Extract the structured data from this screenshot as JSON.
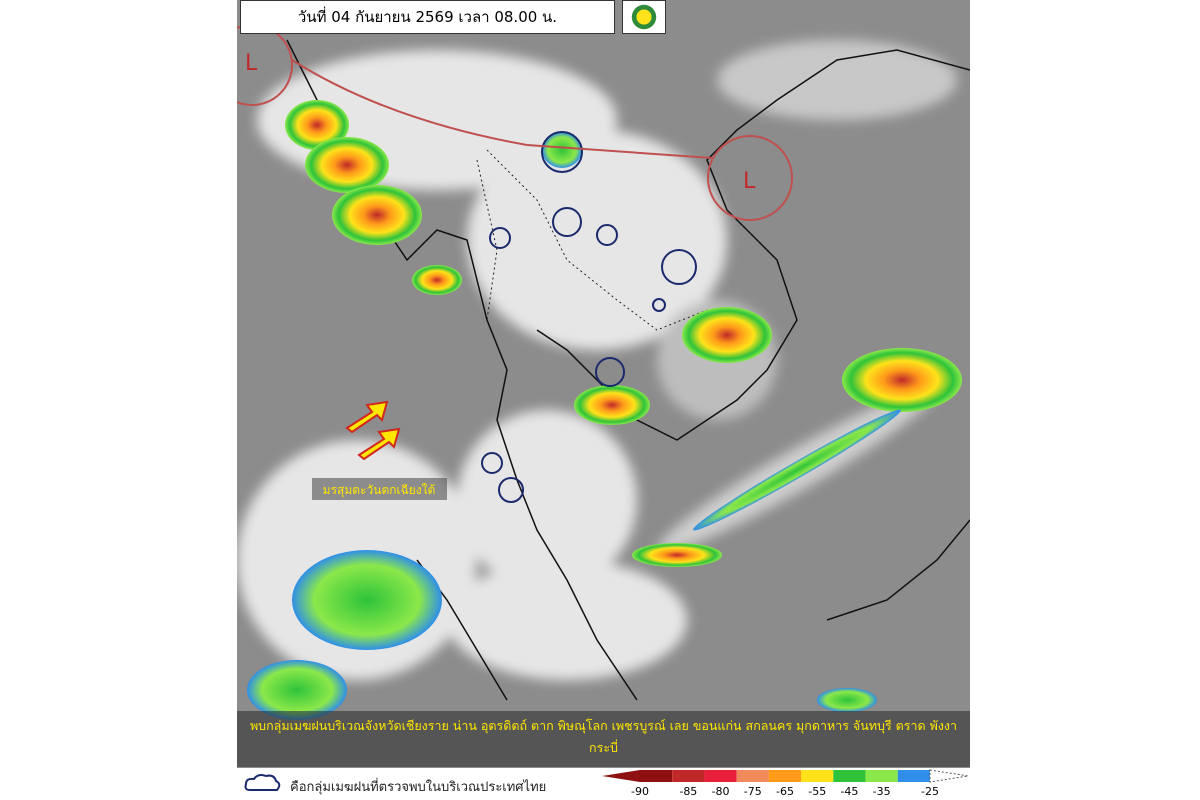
{
  "header": {
    "title": "วันที่ 04 กันยายน 2569 เวลา 08.00 น."
  },
  "map": {
    "low_labels": [
      "L",
      "L"
    ],
    "monsoon_label": "มรสุมตะวันตกเฉียงใต้"
  },
  "caption": {
    "lines": [
      "พบกลุ่มเมฆฝนบริเวณจังหวัดเชียงราย น่าน อุตรดิตถ์ ตาก พิษณุโลก เพชรบูรณ์ เลย ขอนแก่น สกลนคร มุกดาหาร จันทบุรี ตราด  พังงา",
      "กระบี่"
    ]
  },
  "legend": {
    "cloud_note": "คือกลุ่มเมฆฝนที่ตรวจพบในบริเวณประเทศไทย",
    "scale": [
      -90,
      -85,
      -80,
      -75,
      -65,
      -55,
      -45,
      -35,
      -25
    ],
    "colors": [
      "#8e1010",
      "#c0282a",
      "#e8203c",
      "#f08a5a",
      "#ff9a1a",
      "#ffe21a",
      "#2ec33a",
      "#8be84a",
      "#2f8fe8"
    ]
  }
}
